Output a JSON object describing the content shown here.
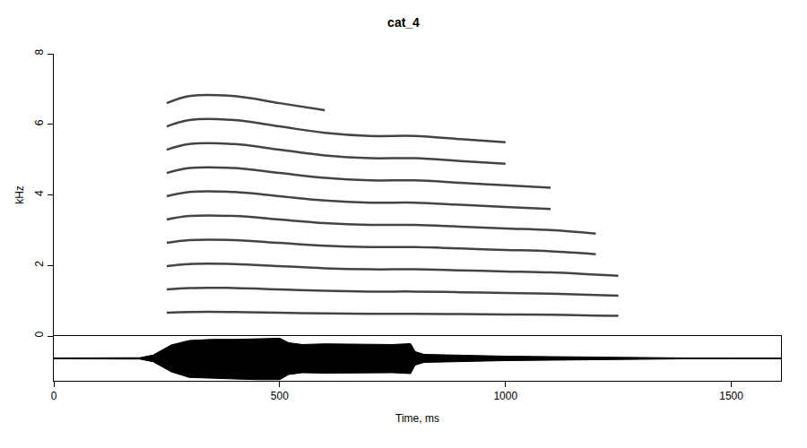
{
  "chart_data": [
    {
      "type": "spectrogram",
      "title": "cat_4",
      "y_label": "kHz",
      "xlim": [
        0,
        1610
      ],
      "ylim": [
        0,
        8
      ],
      "yticks": [
        0,
        2,
        4,
        6,
        8
      ],
      "tick_labels": "y",
      "color": "#444444",
      "line_style": "solid",
      "x": [
        250,
        300,
        400,
        500,
        600,
        700,
        800,
        900,
        1000,
        1100,
        1200,
        1250
      ],
      "series": [
        {
          "values": [
            0.66,
            0.68,
            0.68,
            0.66,
            0.64,
            0.63,
            0.63,
            0.62,
            0.61,
            0.6,
            0.58,
            0.57
          ]
        },
        {
          "values": [
            1.32,
            1.36,
            1.36,
            1.32,
            1.28,
            1.26,
            1.26,
            1.24,
            1.22,
            1.2,
            1.16,
            1.14
          ]
        },
        {
          "values": [
            1.98,
            2.04,
            2.04,
            1.98,
            1.92,
            1.89,
            1.89,
            1.86,
            1.83,
            1.8,
            1.74,
            1.71
          ]
        },
        {
          "values": [
            2.64,
            2.72,
            2.72,
            2.64,
            2.56,
            2.52,
            2.52,
            2.48,
            2.44,
            2.4,
            2.32,
            null
          ]
        },
        {
          "values": [
            3.3,
            3.4,
            3.4,
            3.3,
            3.2,
            3.15,
            3.15,
            3.1,
            3.05,
            3.0,
            2.9,
            null
          ]
        },
        {
          "values": [
            3.96,
            4.08,
            4.08,
            3.96,
            3.84,
            3.78,
            3.78,
            3.72,
            3.66,
            3.6,
            null,
            null
          ]
        },
        {
          "values": [
            4.62,
            4.76,
            4.76,
            4.62,
            4.48,
            4.41,
            4.41,
            4.34,
            4.27,
            4.2,
            null,
            null
          ]
        },
        {
          "values": [
            5.28,
            5.44,
            5.44,
            5.28,
            5.12,
            5.04,
            5.04,
            4.96,
            4.88,
            null,
            null,
            null
          ]
        },
        {
          "values": [
            5.94,
            6.12,
            6.12,
            5.94,
            5.76,
            5.67,
            5.67,
            5.58,
            5.49,
            null,
            null,
            null
          ]
        },
        {
          "values": [
            6.6,
            6.8,
            6.8,
            6.6,
            6.4,
            null,
            null,
            null,
            null,
            null,
            null,
            null
          ]
        }
      ]
    },
    {
      "type": "waveform",
      "x_label": "Time, ms",
      "xlim": [
        0,
        1610
      ],
      "xticks": [
        0,
        500,
        1000,
        1500
      ],
      "ylim": [
        -1,
        1
      ],
      "tick_labels": "x",
      "color": "#000000",
      "x": [
        0,
        100,
        190,
        220,
        260,
        300,
        350,
        400,
        450,
        500,
        520,
        550,
        600,
        650,
        700,
        750,
        790,
        800,
        820,
        900,
        1000,
        1100,
        1200,
        1250,
        1300,
        1400,
        1500,
        1610
      ],
      "upper": [
        0.02,
        0.02,
        0.03,
        0.15,
        0.6,
        0.8,
        0.85,
        0.85,
        0.88,
        0.9,
        0.7,
        0.62,
        0.65,
        0.65,
        0.65,
        0.62,
        0.66,
        0.3,
        0.18,
        0.14,
        0.1,
        0.08,
        0.06,
        0.05,
        0.02,
        0.02,
        0.02,
        0.02
      ],
      "lower": [
        -0.02,
        -0.02,
        -0.03,
        -0.15,
        -0.6,
        -0.85,
        -0.9,
        -0.92,
        -0.95,
        -0.95,
        -0.72,
        -0.64,
        -0.66,
        -0.66,
        -0.66,
        -0.64,
        -0.68,
        -0.3,
        -0.18,
        -0.14,
        -0.1,
        -0.08,
        -0.06,
        -0.05,
        -0.02,
        -0.02,
        -0.02,
        -0.02
      ]
    }
  ]
}
